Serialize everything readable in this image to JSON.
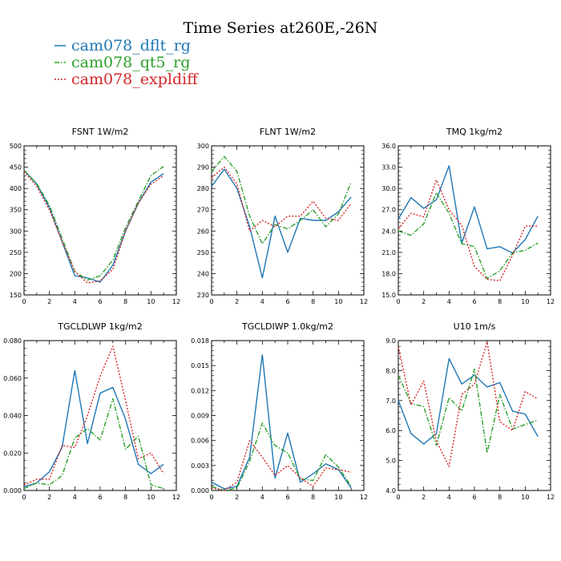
{
  "title": "Time Series at260E,-26N",
  "legend": [
    {
      "name": "cam078_dflt_rg",
      "color": "#1f77b4",
      "dash": "solid"
    },
    {
      "name": "cam078_qt5_rg",
      "color": "#2ca02c",
      "dash": "dashdot"
    },
    {
      "name": "cam078_expldiff",
      "color": "#d62728",
      "dash": "dotted"
    }
  ],
  "chart_data": [
    {
      "type": "line",
      "title": "FSNT   1W/m2",
      "x": [
        0,
        1,
        2,
        3,
        4,
        5,
        6,
        7,
        8,
        9,
        10,
        11
      ],
      "xlim": [
        0,
        12
      ],
      "xticks": [
        "0",
        "2",
        "4",
        "6",
        "8",
        "10",
        "12"
      ],
      "ylim": [
        150,
        500
      ],
      "yticks": [
        "150",
        "200",
        "250",
        "300",
        "350",
        "400",
        "450",
        "500"
      ],
      "series": [
        {
          "name": "cam078_dflt_rg",
          "values": [
            443,
            410,
            355,
            275,
            195,
            190,
            180,
            220,
            300,
            365,
            415,
            435
          ]
        },
        {
          "name": "cam078_qt5_rg",
          "values": [
            442,
            412,
            360,
            283,
            205,
            185,
            195,
            232,
            308,
            370,
            430,
            452
          ]
        },
        {
          "name": "cam078_expldiff",
          "values": [
            440,
            405,
            350,
            275,
            205,
            178,
            183,
            210,
            300,
            365,
            410,
            430
          ]
        }
      ]
    },
    {
      "type": "line",
      "title": "FLNT   1W/m2",
      "x": [
        0,
        1,
        2,
        3,
        4,
        5,
        6,
        7,
        8,
        9,
        10,
        11
      ],
      "xlim": [
        0,
        12
      ],
      "xticks": [
        "0",
        "2",
        "4",
        "6",
        "8",
        "10",
        "12"
      ],
      "ylim": [
        230,
        300
      ],
      "yticks": [
        "230",
        "240",
        "250",
        "260",
        "270",
        "280",
        "290",
        "300"
      ],
      "series": [
        {
          "name": "cam078_dflt_rg",
          "values": [
            281,
            289,
            280,
            262,
            238,
            267,
            250,
            266,
            265,
            265,
            269,
            276
          ]
        },
        {
          "name": "cam078_qt5_rg",
          "values": [
            288,
            295,
            288,
            267,
            254,
            263,
            261,
            265,
            270,
            262,
            268,
            283
          ]
        },
        {
          "name": "cam078_expldiff",
          "values": [
            285,
            290,
            282,
            260,
            265,
            262,
            267,
            267,
            274,
            266,
            265,
            273
          ]
        }
      ]
    },
    {
      "type": "line",
      "title": "TMQ   1kg/m2",
      "x": [
        0,
        1,
        2,
        3,
        4,
        5,
        6,
        7,
        8,
        9,
        10,
        11
      ],
      "xlim": [
        0,
        12
      ],
      "xticks": [
        "0",
        "2",
        "4",
        "6",
        "8",
        "10",
        "12"
      ],
      "ylim": [
        15.0,
        36.0
      ],
      "yticks": [
        "15.0",
        "18.0",
        "21.0",
        "24.0",
        "27.0",
        "30.0",
        "33.0",
        "36.0"
      ],
      "series": [
        {
          "name": "cam078_dflt_rg",
          "values": [
            25.7,
            28.7,
            27.2,
            28.4,
            33.2,
            22.3,
            27.4,
            21.5,
            21.8,
            20.9,
            22.8,
            26.1
          ]
        },
        {
          "name": "cam078_qt5_rg",
          "values": [
            24.0,
            23.4,
            25.0,
            29.4,
            26.5,
            22.2,
            21.8,
            17.3,
            18.4,
            20.9,
            21.3,
            22.3
          ]
        },
        {
          "name": "cam078_expldiff",
          "values": [
            24.3,
            26.5,
            26.0,
            31.2,
            27.0,
            24.8,
            19.0,
            17.2,
            17.0,
            20.6,
            24.7,
            24.7
          ]
        }
      ]
    },
    {
      "type": "line",
      "title": "TGCLDLWP   1kg/m2",
      "x": [
        0,
        1,
        2,
        3,
        4,
        5,
        6,
        7,
        8,
        9,
        10,
        11
      ],
      "xlim": [
        0,
        12
      ],
      "xticks": [
        "0",
        "2",
        "4",
        "6",
        "8",
        "10",
        "12"
      ],
      "ylim": [
        0,
        0.08
      ],
      "yticks": [
        "0.000",
        "0.020",
        "0.040",
        "0.060",
        "0.080"
      ],
      "series": [
        {
          "name": "cam078_dflt_rg",
          "values": [
            0.002,
            0.004,
            0.01,
            0.023,
            0.064,
            0.025,
            0.052,
            0.055,
            0.038,
            0.014,
            0.009,
            0.014
          ]
        },
        {
          "name": "cam078_qt5_rg",
          "values": [
            0.001,
            0.004,
            0.003,
            0.008,
            0.028,
            0.033,
            0.027,
            0.049,
            0.022,
            0.029,
            0.003,
            0.001
          ]
        },
        {
          "name": "cam078_expldiff",
          "values": [
            0.003,
            0.006,
            0.006,
            0.024,
            0.023,
            0.04,
            0.061,
            0.077,
            0.048,
            0.017,
            0.02,
            0.009
          ]
        }
      ]
    },
    {
      "type": "line",
      "title": "TGCLDIWP   1.0kg/m2",
      "x": [
        0,
        1,
        2,
        3,
        4,
        5,
        6,
        7,
        8,
        9,
        10,
        11
      ],
      "xlim": [
        0,
        12
      ],
      "xticks": [
        "0",
        "2",
        "4",
        "6",
        "8",
        "10",
        "12"
      ],
      "ylim": [
        0,
        0.018
      ],
      "yticks": [
        "0.000",
        "0.003",
        "0.006",
        "0.009",
        "0.012",
        "0.015",
        "0.018"
      ],
      "series": [
        {
          "name": "cam078_dflt_rg",
          "values": [
            0.001,
            0.0002,
            0.0005,
            0.004,
            0.0163,
            0.0015,
            0.0069,
            0.001,
            0.002,
            0.0032,
            0.0025,
            0.0003
          ]
        },
        {
          "name": "cam078_qt5_rg",
          "values": [
            0.0005,
            0.0,
            0.0003,
            0.0035,
            0.0081,
            0.0054,
            0.0045,
            0.0014,
            0.0012,
            0.0043,
            0.0028,
            0.0005
          ]
        },
        {
          "name": "cam078_expldiff",
          "values": [
            0.0003,
            0.0,
            0.001,
            0.006,
            0.004,
            0.0018,
            0.003,
            0.0015,
            0.0005,
            0.0027,
            0.0025,
            0.0022
          ]
        }
      ]
    },
    {
      "type": "line",
      "title": "U10   1m/s",
      "x": [
        0,
        1,
        2,
        3,
        4,
        5,
        6,
        7,
        8,
        9,
        10,
        11
      ],
      "xlim": [
        0,
        12
      ],
      "xticks": [
        "0",
        "2",
        "4",
        "6",
        "8",
        "10",
        "12"
      ],
      "ylim": [
        4.0,
        9.0
      ],
      "yticks": [
        "4.0",
        "5.0",
        "6.0",
        "7.0",
        "8.0",
        "9.0"
      ],
      "series": [
        {
          "name": "cam078_dflt_rg",
          "values": [
            7.0,
            5.9,
            5.55,
            5.9,
            8.4,
            7.55,
            7.85,
            7.45,
            7.6,
            6.65,
            6.55,
            5.8
          ]
        },
        {
          "name": "cam078_qt5_rg",
          "values": [
            7.85,
            6.9,
            6.8,
            5.5,
            7.1,
            6.65,
            8.05,
            5.25,
            7.2,
            6.05,
            6.2,
            6.35
          ]
        },
        {
          "name": "cam078_expldiff",
          "values": [
            8.8,
            6.85,
            7.65,
            5.65,
            4.8,
            7.2,
            7.55,
            8.95,
            6.3,
            6.0,
            7.3,
            7.05
          ]
        }
      ]
    }
  ]
}
